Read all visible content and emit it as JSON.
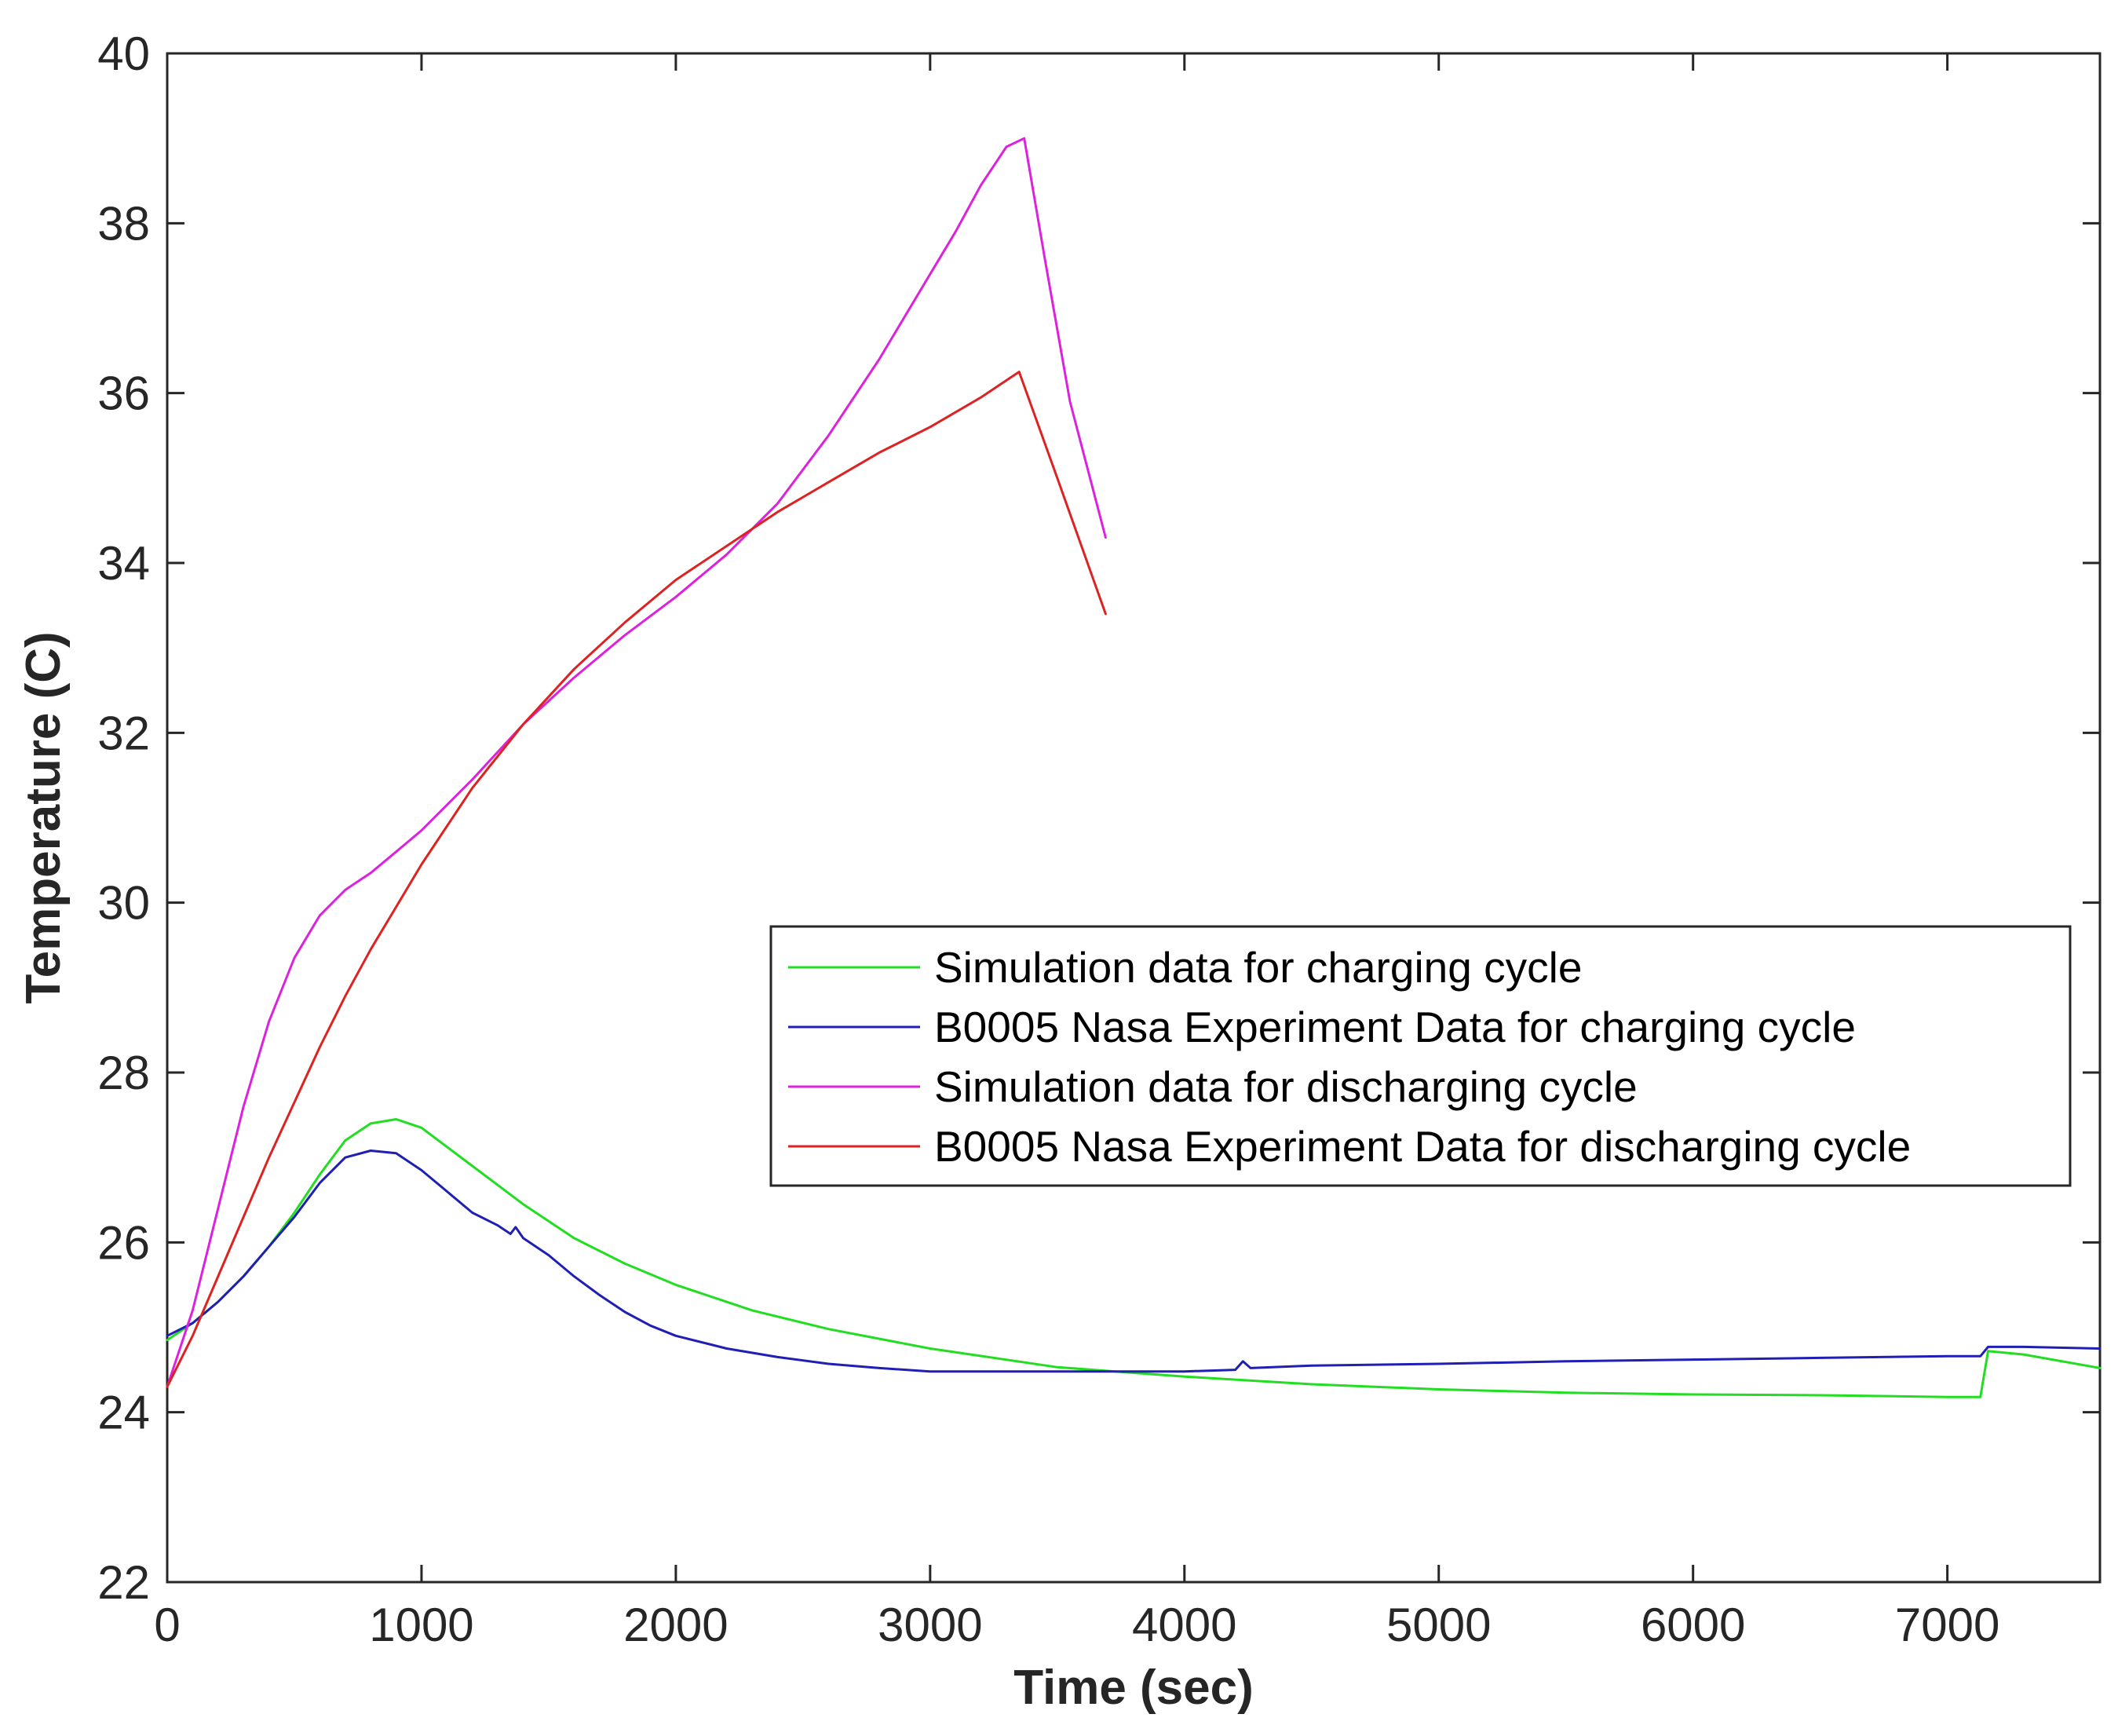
{
  "chart_data": {
    "type": "line",
    "title": "",
    "xlabel": "Time (sec)",
    "ylabel": "Temperature (C)",
    "xlim": [
      0,
      7600
    ],
    "ylim": [
      22,
      40
    ],
    "xticks": [
      0,
      1000,
      2000,
      3000,
      4000,
      5000,
      6000,
      7000
    ],
    "yticks": [
      22,
      24,
      26,
      28,
      30,
      32,
      34,
      36,
      38,
      40
    ],
    "legend_position": "center-right",
    "series": [
      {
        "name": "Simulation data for charging cycle",
        "color": "#22dd22",
        "x": [
          0,
          100,
          200,
          300,
          400,
          500,
          600,
          700,
          800,
          900,
          1000,
          1200,
          1400,
          1600,
          1800,
          2000,
          2300,
          2600,
          3000,
          3500,
          4000,
          4500,
          5000,
          5500,
          6000,
          6500,
          7000,
          7130,
          7160,
          7300,
          7600
        ],
        "y": [
          24.85,
          25.05,
          25.3,
          25.6,
          25.95,
          26.35,
          26.8,
          27.2,
          27.4,
          27.45,
          27.35,
          26.9,
          26.45,
          26.05,
          25.75,
          25.5,
          25.2,
          24.98,
          24.75,
          24.53,
          24.42,
          24.33,
          24.27,
          24.23,
          24.21,
          24.2,
          24.18,
          24.18,
          24.72,
          24.68,
          24.52
        ]
      },
      {
        "name": "B0005 Nasa Experiment Data for charging cycle",
        "color": "#1f1fb4",
        "x": [
          0,
          100,
          200,
          300,
          400,
          500,
          600,
          700,
          800,
          900,
          1000,
          1100,
          1200,
          1300,
          1350,
          1370,
          1400,
          1500,
          1600,
          1700,
          1800,
          1900,
          2000,
          2200,
          2400,
          2600,
          2800,
          3000,
          3500,
          4000,
          4200,
          4230,
          4260,
          4500,
          5000,
          5500,
          6000,
          6500,
          7000,
          7130,
          7160,
          7300,
          7600
        ],
        "y": [
          24.9,
          25.05,
          25.3,
          25.6,
          25.95,
          26.3,
          26.7,
          27.0,
          27.08,
          27.05,
          26.85,
          26.6,
          26.35,
          26.2,
          26.1,
          26.18,
          26.05,
          25.85,
          25.6,
          25.38,
          25.18,
          25.02,
          24.9,
          24.75,
          24.65,
          24.57,
          24.52,
          24.48,
          24.48,
          24.48,
          24.5,
          24.6,
          24.52,
          24.55,
          24.57,
          24.6,
          24.62,
          24.64,
          24.66,
          24.66,
          24.77,
          24.77,
          24.75
        ]
      },
      {
        "name": "Simulation data for discharging cycle",
        "color": "#dd22dd",
        "x": [
          0,
          100,
          200,
          300,
          400,
          500,
          600,
          700,
          800,
          900,
          1000,
          1200,
          1400,
          1600,
          1800,
          2000,
          2200,
          2400,
          2600,
          2800,
          3000,
          3100,
          3200,
          3300,
          3370,
          3450,
          3550,
          3690
        ],
        "y": [
          24.3,
          25.2,
          26.4,
          27.6,
          28.6,
          29.35,
          29.85,
          30.15,
          30.35,
          30.6,
          30.85,
          31.45,
          32.1,
          32.65,
          33.15,
          33.6,
          34.1,
          34.7,
          35.5,
          36.4,
          37.4,
          37.9,
          38.45,
          38.9,
          39.0,
          37.6,
          35.9,
          34.3
        ]
      },
      {
        "name": "B0005 Nasa Experiment Data for discharging cycle",
        "color": "#dd2222",
        "x": [
          0,
          100,
          200,
          300,
          400,
          500,
          600,
          700,
          800,
          900,
          1000,
          1200,
          1400,
          1600,
          1800,
          2000,
          2200,
          2400,
          2600,
          2800,
          3000,
          3200,
          3350,
          3500,
          3690
        ],
        "y": [
          24.3,
          24.9,
          25.6,
          26.3,
          27.0,
          27.65,
          28.3,
          28.9,
          29.45,
          29.95,
          30.45,
          31.35,
          32.1,
          32.75,
          33.3,
          33.8,
          34.2,
          34.6,
          34.95,
          35.3,
          35.6,
          35.95,
          36.25,
          35.0,
          33.4
        ]
      }
    ]
  }
}
